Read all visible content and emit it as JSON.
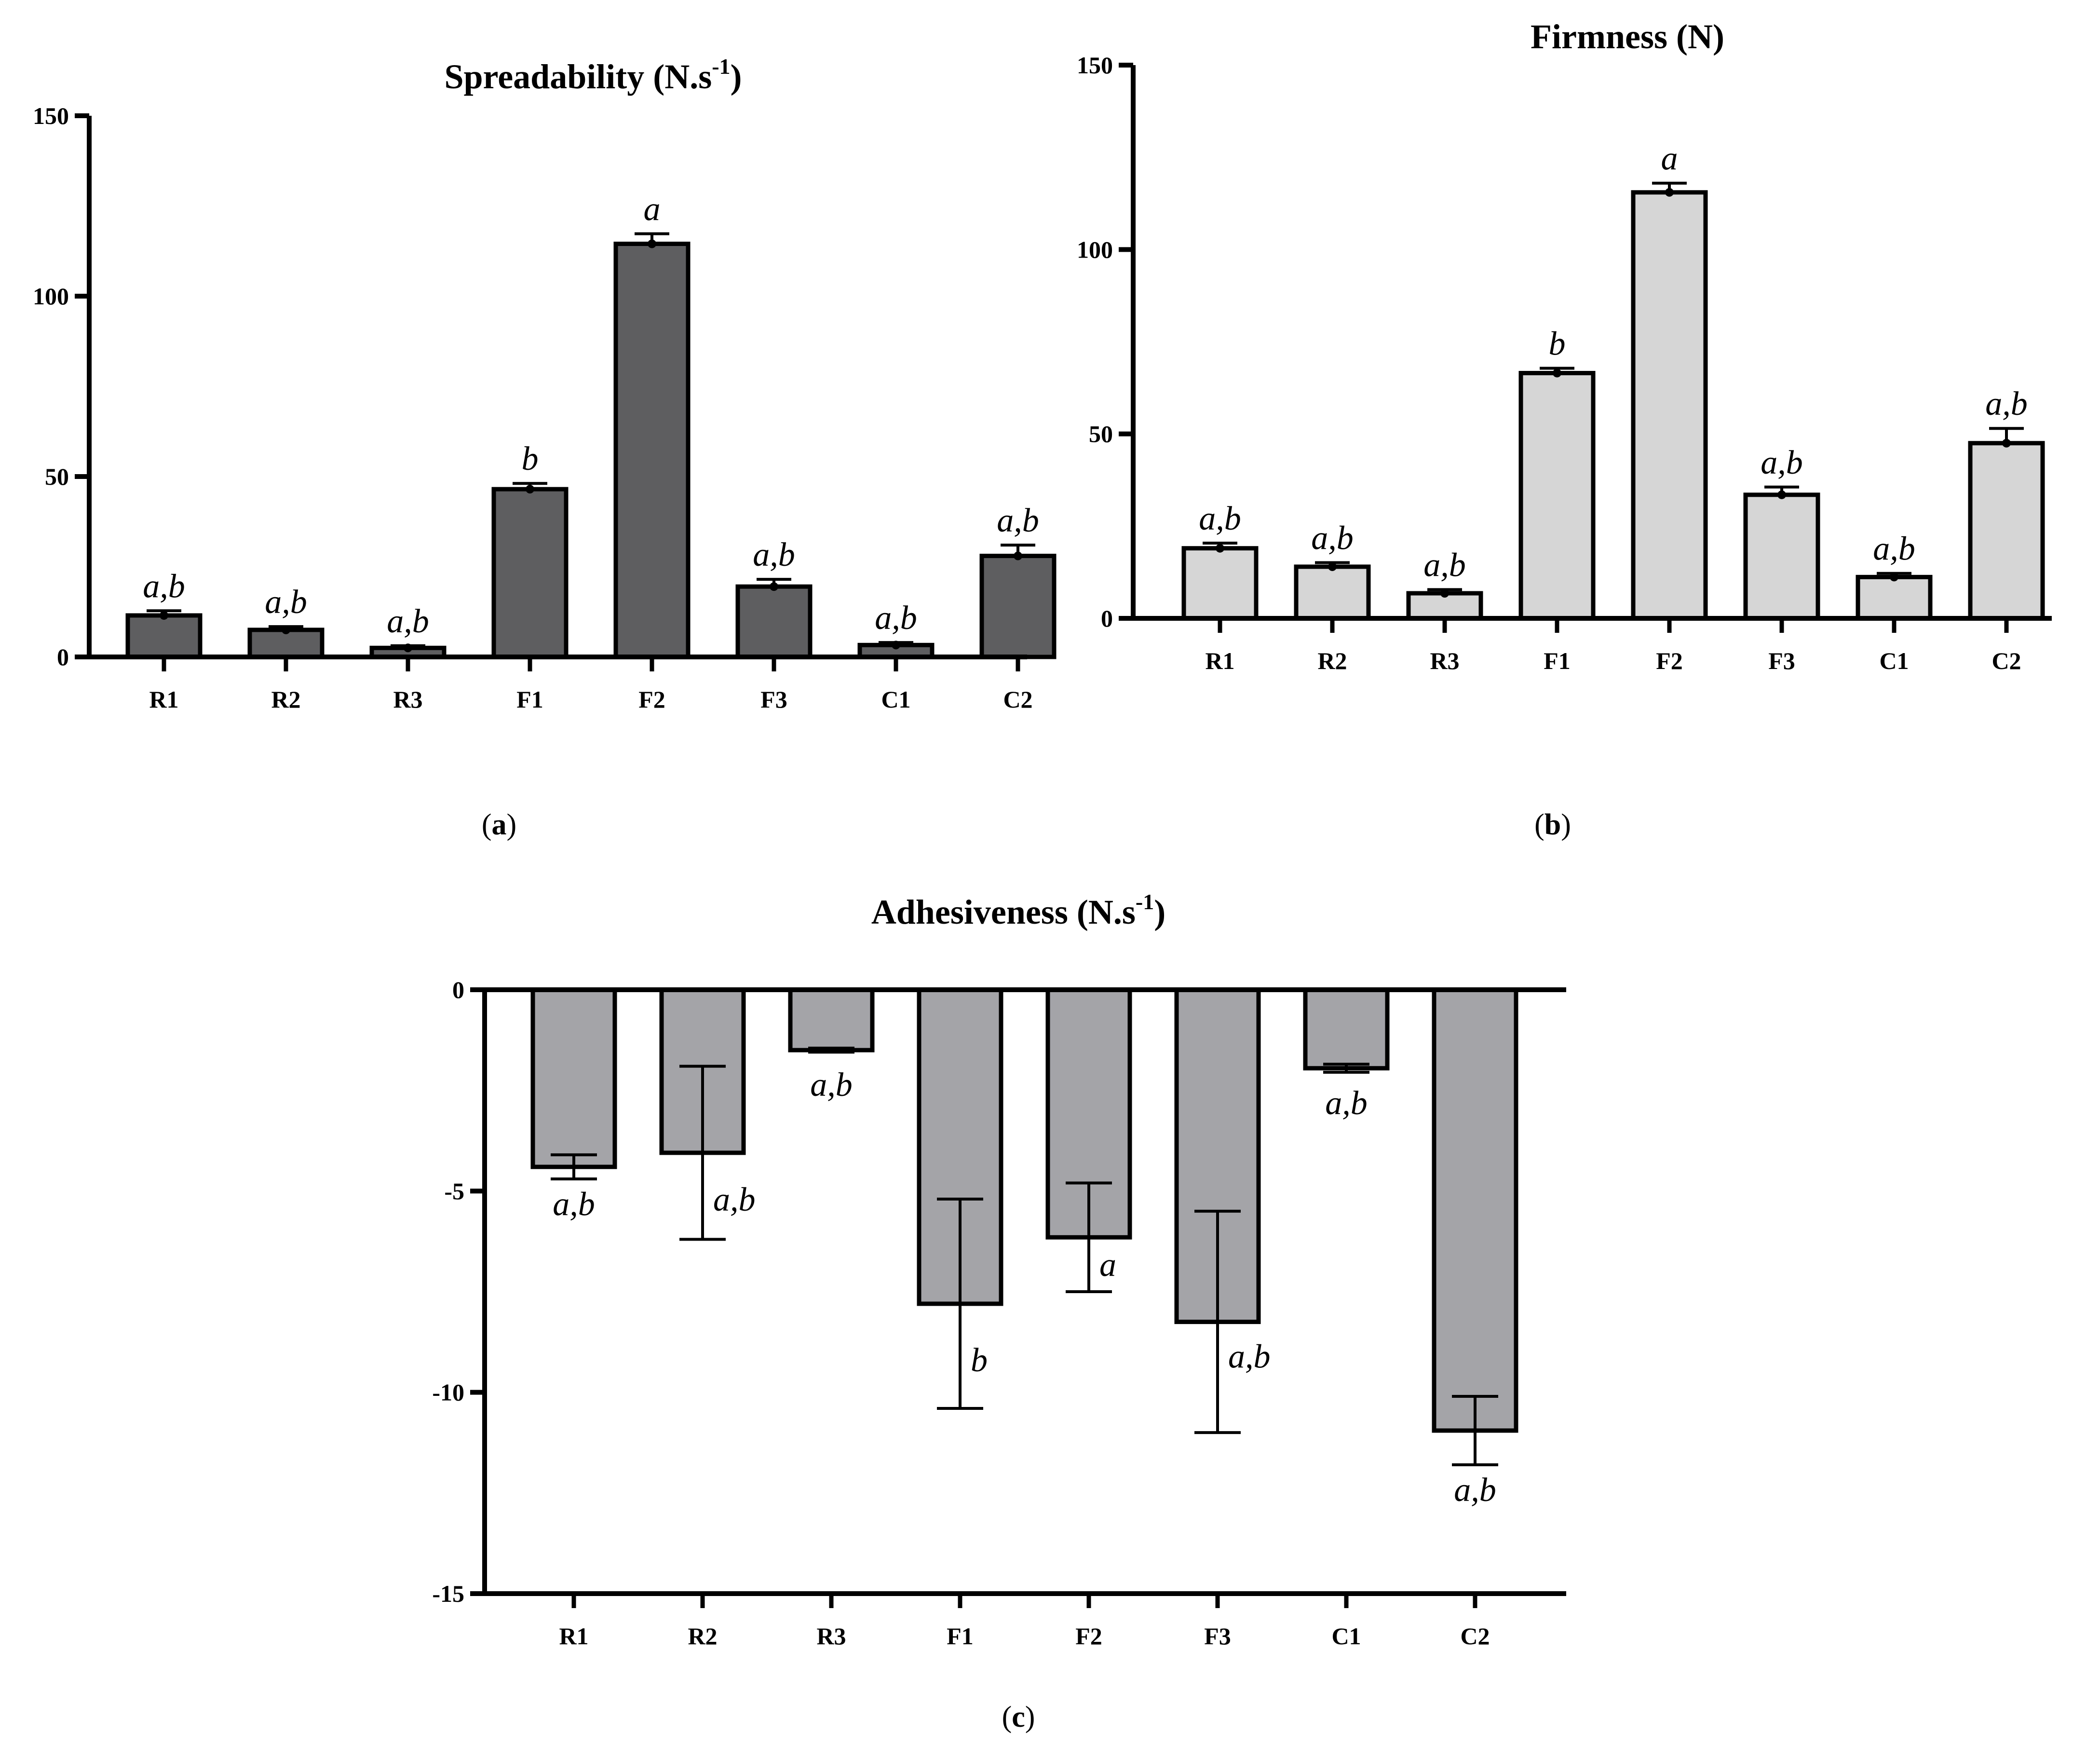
{
  "chart_data": [
    {
      "id": "a",
      "type": "bar",
      "title": "Spreadability (N.s",
      "title_sup": "-1",
      "title_close": ")",
      "caption_letter": "a",
      "categories": [
        "R1",
        "R2",
        "R3",
        "F1",
        "F2",
        "F3",
        "C1",
        "C2"
      ],
      "values": [
        11.5,
        7.5,
        2.5,
        46.5,
        114.5,
        19.5,
        3.3,
        28
      ],
      "errors": [
        1.3,
        0.9,
        0.6,
        1.6,
        2.8,
        2.0,
        0.7,
        3.0
      ],
      "significance": [
        "a,b",
        "a,b",
        "a,b",
        "b",
        "a",
        "a,b",
        "a,b",
        "a,b"
      ],
      "ylim": [
        0,
        150
      ],
      "yticks": [
        0,
        50,
        100,
        150
      ],
      "xlabel": "",
      "ylabel": "",
      "bar_color": "#5e5e60"
    },
    {
      "id": "b",
      "type": "bar",
      "title": "Firmness (N)",
      "title_sup": "",
      "title_close": "",
      "caption_letter": "b",
      "categories": [
        "R1",
        "R2",
        "R3",
        "F1",
        "F2",
        "F3",
        "C1",
        "C2"
      ],
      "values": [
        19,
        14,
        6.8,
        66.5,
        115.5,
        33.5,
        11.2,
        47.5
      ],
      "errors": [
        1.4,
        1.1,
        1.0,
        1.3,
        2.5,
        2.1,
        1.0,
        4.0
      ],
      "significance": [
        "a,b",
        "a,b",
        "a,b",
        "b",
        "a",
        "a,b",
        "a,b",
        "a,b"
      ],
      "ylim": [
        0,
        150
      ],
      "yticks": [
        0,
        50,
        100,
        150
      ],
      "xlabel": "",
      "ylabel": "",
      "bar_color": "#d6d6d6"
    },
    {
      "id": "c",
      "type": "bar",
      "title": "Adhesiveness (N.s",
      "title_sup": "-1",
      "title_close": ")",
      "caption_letter": "c",
      "categories": [
        "R1",
        "R2",
        "R3",
        "F1",
        "F2",
        "F3",
        "C1",
        "C2"
      ],
      "values": [
        -4.4,
        -4.05,
        -1.5,
        -7.8,
        -6.15,
        -8.25,
        -1.95,
        -10.95
      ],
      "errors": [
        0.3,
        2.15,
        0.05,
        2.6,
        1.35,
        2.75,
        0.1,
        0.85
      ],
      "significance": [
        "a,b",
        "a,b",
        "a,b",
        "b",
        "a",
        "a,b",
        "a,b",
        "a,b"
      ],
      "ylim": [
        -15,
        0
      ],
      "yticks": [
        0,
        -5,
        -10,
        -15
      ],
      "xlabel": "",
      "ylabel": "",
      "bar_color": "#a4a4a8"
    }
  ]
}
